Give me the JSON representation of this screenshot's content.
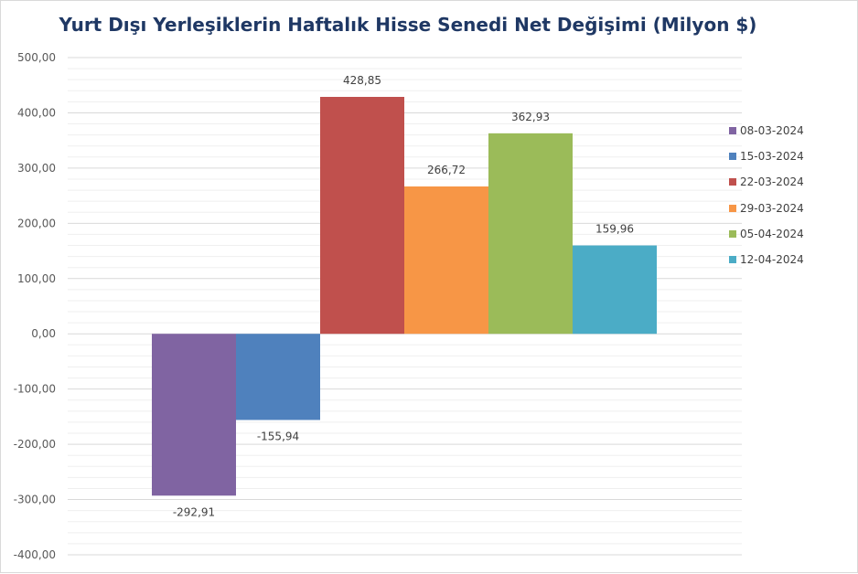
{
  "chart_data": {
    "type": "bar",
    "title": "Yurt Dışı Yerleşiklerin Haftalık Hisse Senedi Net Değişimi (Milyon $)",
    "xlabel": "",
    "ylabel": "",
    "ylim": [
      -400,
      500
    ],
    "y_ticks": [
      500,
      400,
      300,
      200,
      100,
      0,
      -100,
      -200,
      -300,
      -400
    ],
    "y_tick_labels": [
      "500,00",
      "400,00",
      "300,00",
      "200,00",
      "100,00",
      "0,00",
      "-100,00",
      "-200,00",
      "-300,00",
      "-400,00"
    ],
    "grid": true,
    "legend_position": "right",
    "series": [
      {
        "name": "08-03-2024",
        "value": -292.91,
        "label": "-292,91",
        "color": "#8064a2"
      },
      {
        "name": "15-03-2024",
        "value": -155.94,
        "label": "-155,94",
        "color": "#4f81bd"
      },
      {
        "name": "22-03-2024",
        "value": 428.85,
        "label": "428,85",
        "color": "#c0504d"
      },
      {
        "name": "29-03-2024",
        "value": 266.72,
        "label": "266,72",
        "color": "#f79646"
      },
      {
        "name": "05-04-2024",
        "value": 362.93,
        "label": "362,93",
        "color": "#9bbb59"
      },
      {
        "name": "12-04-2024",
        "value": 159.96,
        "label": "159,96",
        "color": "#4bacc6"
      }
    ]
  }
}
